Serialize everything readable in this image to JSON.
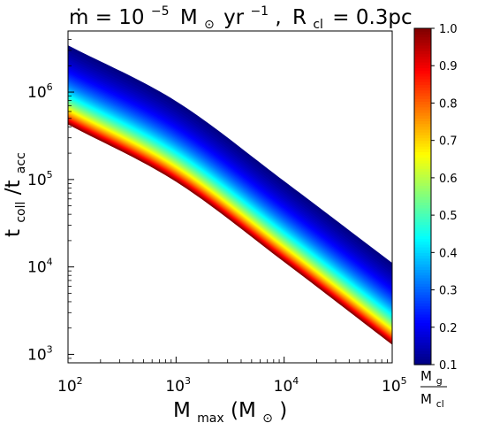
{
  "chart_data": {
    "type": "area",
    "title": {
      "mdot_symbol": "ṁ",
      "mdot_value": "= 10",
      "mdot_exp": "−5",
      "mdot_units": "M",
      "mdot_units_sub": "⊙",
      "mdot_units_tail": "yr",
      "mdot_units_exp": "−1",
      "sep": ",",
      "rcl_symbol": "R",
      "rcl_sub": "cl",
      "rcl_value": "= 0.3pc"
    },
    "xlabel": {
      "main": "M",
      "sub": "max",
      "unit_open": "(M",
      "unit_sub": "⊙",
      "unit_close": ")"
    },
    "ylabel": {
      "t": "t",
      "coll": "coll",
      "slash": "/t",
      "acc": "acc"
    },
    "x_scale": "log",
    "y_scale": "log",
    "xlim": [
      100,
      100000
    ],
    "ylim": [
      800,
      5000000
    ],
    "x_ticks": [
      {
        "value": 100,
        "base": "10",
        "exp": "2"
      },
      {
        "value": 1000,
        "base": "10",
        "exp": "3"
      },
      {
        "value": 10000,
        "base": "10",
        "exp": "4"
      },
      {
        "value": 100000,
        "base": "10",
        "exp": "5"
      }
    ],
    "y_ticks": [
      {
        "value": 1000,
        "base": "10",
        "exp": "3"
      },
      {
        "value": 10000,
        "base": "10",
        "exp": "4"
      },
      {
        "value": 100000,
        "base": "10",
        "exp": "5"
      },
      {
        "value": 1000000,
        "base": "10",
        "exp": "6"
      }
    ],
    "band_edges": {
      "x": [
        100,
        1000,
        10000,
        100000
      ],
      "top_edge_Mg_Mcl_0.1": [
        3400000,
        780000,
        95000,
        11000
      ],
      "bottom_edge_Mg_Mcl_1.0": [
        430000,
        95000,
        11500,
        1300
      ]
    },
    "colorbar": {
      "label_num": "M",
      "label_num_sub": "g",
      "label_den": "M",
      "label_den_sub": "cl",
      "range": [
        0.1,
        1.0
      ],
      "ticks": [
        "0.1",
        "0.2",
        "0.3",
        "0.4",
        "0.5",
        "0.6",
        "0.7",
        "0.8",
        "0.9",
        "1.0"
      ],
      "colormap": "jet",
      "low_color": "#00007f",
      "high_color": "#7f0000"
    },
    "grid": false
  }
}
